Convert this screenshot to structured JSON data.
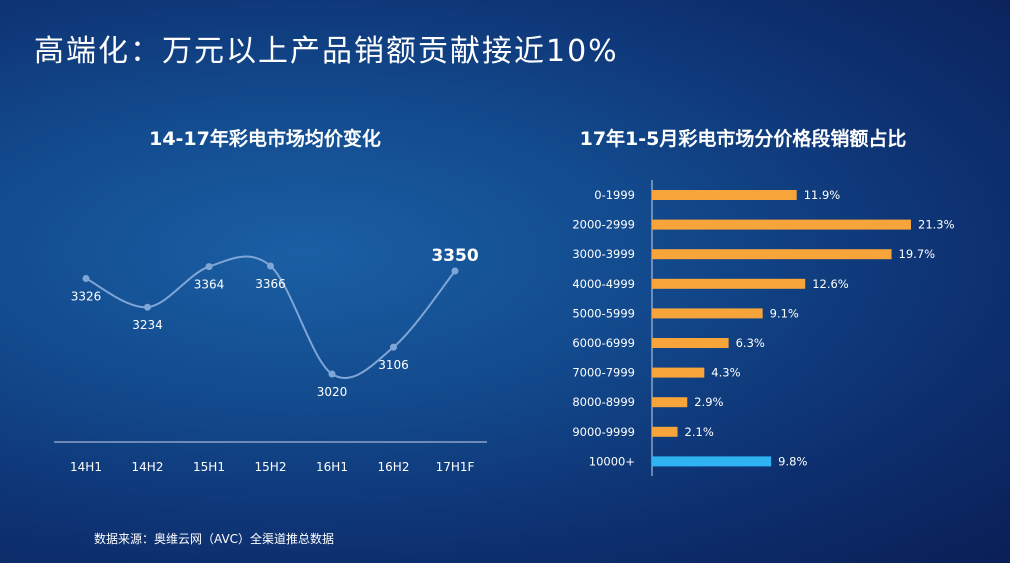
{
  "page": {
    "title": "高端化：万元以上产品销额贡献接近10%",
    "source": "数据来源：奥维云网（AVC）全渠道推总数据"
  },
  "colors": {
    "line": "#7fa6d6",
    "bar_default": "#f7a43b",
    "bar_highlight": "#2fb3f2",
    "axis": "#c8d3e8"
  },
  "chart_data": [
    {
      "type": "line",
      "title": "14-17年彩电市场均价变化",
      "categories": [
        "14H1",
        "14H2",
        "15H1",
        "15H2",
        "16H1",
        "16H2",
        "17H1F"
      ],
      "values": [
        3326,
        3234,
        3364,
        3366,
        3020,
        3106,
        3350
      ],
      "value_labels": [
        "3326",
        "3234",
        "3364",
        "3366",
        "3020",
        "3106",
        "3350"
      ],
      "highlight_index": 6,
      "smooth": true,
      "grid": false,
      "legend": "none"
    },
    {
      "type": "bar",
      "orientation": "horizontal",
      "title": "17年1-5月彩电市场分价格段销额占比",
      "categories": [
        "0-1999",
        "2000-2999",
        "3000-3999",
        "4000-4999",
        "5000-5999",
        "6000-6999",
        "7000-7999",
        "8000-8999",
        "9000-9999",
        "10000+"
      ],
      "values": [
        11.9,
        21.3,
        19.7,
        12.6,
        9.1,
        6.3,
        4.3,
        2.9,
        2.1,
        9.8
      ],
      "value_labels": [
        "11.9%",
        "21.3%",
        "19.7%",
        "12.6%",
        "9.1%",
        "6.3%",
        "4.3%",
        "2.9%",
        "2.1%",
        "9.8%"
      ],
      "highlight_index": 9,
      "grid": false,
      "legend": "none"
    }
  ]
}
